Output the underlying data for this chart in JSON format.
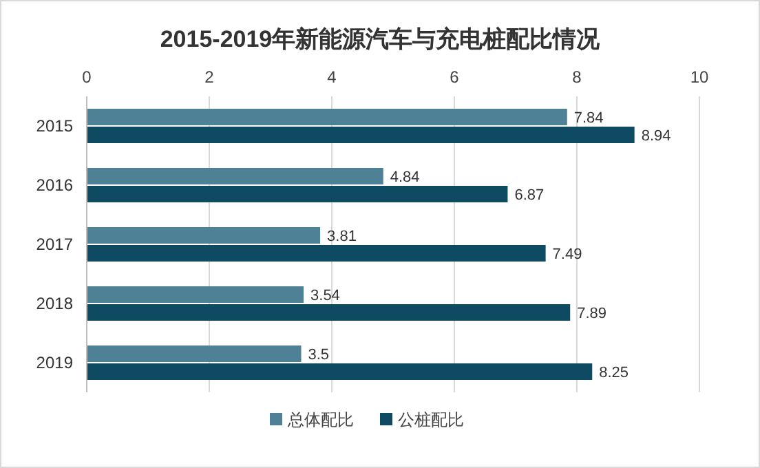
{
  "chart_data": {
    "type": "bar",
    "orientation": "horizontal",
    "title": "2015-2019年新能源汽车与充电桩配比情况",
    "categories": [
      "2015",
      "2016",
      "2017",
      "2018",
      "2019"
    ],
    "series": [
      {
        "name": "总体配比",
        "color": "#4f8196",
        "values": [
          7.84,
          4.84,
          3.81,
          3.54,
          3.5
        ]
      },
      {
        "name": "公桩配比",
        "color": "#0e4a62",
        "values": [
          8.94,
          6.87,
          7.49,
          7.89,
          8.25
        ]
      }
    ],
    "xlim": [
      0,
      10
    ],
    "xticks": [
      0,
      2,
      4,
      6,
      8,
      10
    ],
    "grid": "x",
    "legend": "bottom",
    "data_labels": true
  }
}
